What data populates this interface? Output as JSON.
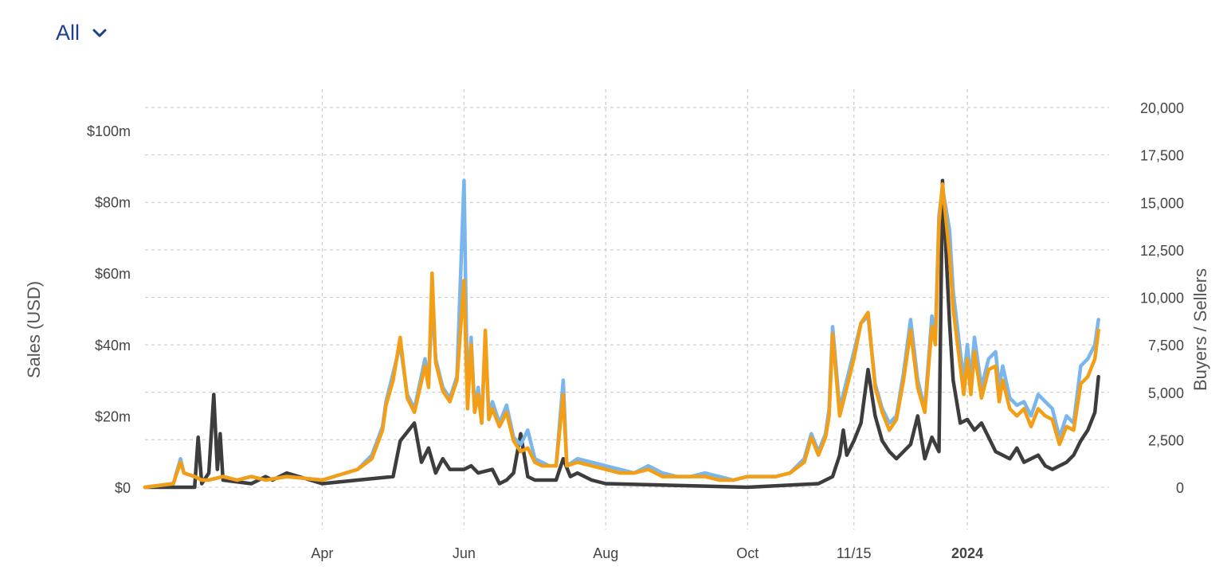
{
  "filter": {
    "label": "All",
    "icon": "chevron-down-icon"
  },
  "chart_data": {
    "type": "line",
    "title": "",
    "y_left": {
      "label": "Sales (USD)",
      "ticks": [
        "$0",
        "$20m",
        "$40m",
        "$60m",
        "$80m",
        "$100m"
      ],
      "tick_values": [
        0,
        20,
        40,
        60,
        80,
        100
      ],
      "range": [
        0,
        100
      ]
    },
    "y_right": {
      "label": "Buyers / Sellers",
      "ticks": [
        "0",
        "2,500",
        "5,000",
        "7,500",
        "10,000",
        "12,500",
        "15,000",
        "17,500",
        "20,000"
      ],
      "tick_values": [
        0,
        2500,
        5000,
        7500,
        10000,
        12500,
        15000,
        17500,
        20000
      ],
      "range": [
        0,
        20000
      ]
    },
    "x_ticks": [
      {
        "label": "Apr",
        "x": 1.0,
        "bold": false
      },
      {
        "label": "Jun",
        "x": 3.0,
        "bold": false
      },
      {
        "label": "Aug",
        "x": 5.0,
        "bold": false
      },
      {
        "label": "Oct",
        "x": 7.0,
        "bold": false
      },
      {
        "label": "11/15",
        "x": 8.5,
        "bold": false
      },
      {
        "label": "2024",
        "x": 10.1,
        "bold": true
      }
    ],
    "x_range": [
      -1.5,
      12.1
    ],
    "grid": true,
    "series": [
      {
        "axis": "left",
        "color": "#3d3d3d",
        "points": [
          [
            -1.5,
            0
          ],
          [
            -0.8,
            0
          ],
          [
            -0.75,
            14
          ],
          [
            -0.7,
            1
          ],
          [
            -0.6,
            4
          ],
          [
            -0.53,
            26
          ],
          [
            -0.48,
            5
          ],
          [
            -0.44,
            15
          ],
          [
            -0.4,
            2
          ],
          [
            0,
            1
          ],
          [
            0.2,
            3
          ],
          [
            0.3,
            2
          ],
          [
            0.5,
            4
          ],
          [
            1.0,
            1
          ],
          [
            1.5,
            2
          ],
          [
            2.0,
            3
          ],
          [
            2.1,
            13
          ],
          [
            2.3,
            18
          ],
          [
            2.4,
            7
          ],
          [
            2.5,
            11
          ],
          [
            2.6,
            4
          ],
          [
            2.7,
            8
          ],
          [
            2.8,
            5
          ],
          [
            3.0,
            5
          ],
          [
            3.1,
            6
          ],
          [
            3.2,
            4
          ],
          [
            3.4,
            5
          ],
          [
            3.5,
            1
          ],
          [
            3.6,
            2
          ],
          [
            3.7,
            4
          ],
          [
            3.8,
            15
          ],
          [
            3.9,
            3
          ],
          [
            4.0,
            2
          ],
          [
            4.3,
            2
          ],
          [
            4.4,
            8
          ],
          [
            4.5,
            3
          ],
          [
            4.6,
            4
          ],
          [
            4.8,
            2
          ],
          [
            5.0,
            1
          ],
          [
            6.0,
            0.5
          ],
          [
            7.0,
            0
          ],
          [
            7.5,
            0.5
          ],
          [
            8.0,
            1
          ],
          [
            8.2,
            3
          ],
          [
            8.3,
            9
          ],
          [
            8.35,
            16
          ],
          [
            8.4,
            9
          ],
          [
            8.5,
            13
          ],
          [
            8.6,
            18
          ],
          [
            8.7,
            33
          ],
          [
            8.8,
            20
          ],
          [
            8.9,
            13
          ],
          [
            9.0,
            10
          ],
          [
            9.1,
            8
          ],
          [
            9.3,
            12
          ],
          [
            9.4,
            20
          ],
          [
            9.5,
            8
          ],
          [
            9.6,
            14
          ],
          [
            9.7,
            10
          ],
          [
            9.75,
            86
          ],
          [
            9.85,
            46
          ],
          [
            9.9,
            30
          ],
          [
            10.0,
            18
          ],
          [
            10.1,
            19
          ],
          [
            10.2,
            16
          ],
          [
            10.3,
            18
          ],
          [
            10.4,
            14
          ],
          [
            10.5,
            10
          ],
          [
            10.6,
            9
          ],
          [
            10.7,
            8
          ],
          [
            10.8,
            11
          ],
          [
            10.9,
            7
          ],
          [
            11.0,
            8
          ],
          [
            11.1,
            9
          ],
          [
            11.2,
            6
          ],
          [
            11.3,
            5
          ],
          [
            11.4,
            6
          ],
          [
            11.5,
            7
          ],
          [
            11.6,
            9
          ],
          [
            11.7,
            13
          ],
          [
            11.8,
            16
          ],
          [
            11.9,
            21
          ],
          [
            11.95,
            31
          ]
        ]
      },
      {
        "axis": "left",
        "color": "#7ab6ec",
        "points": [
          [
            -1.5,
            0
          ],
          [
            -1.1,
            1
          ],
          [
            -1.0,
            8
          ],
          [
            -0.95,
            4
          ],
          [
            -0.8,
            3
          ],
          [
            -0.7,
            2
          ],
          [
            -0.6,
            2
          ],
          [
            -0.4,
            3
          ],
          [
            -0.2,
            2
          ],
          [
            0,
            3
          ],
          [
            0.2,
            2
          ],
          [
            0.5,
            3
          ],
          [
            1.0,
            2
          ],
          [
            1.5,
            5
          ],
          [
            1.7,
            9
          ],
          [
            1.85,
            17
          ],
          [
            1.9,
            24
          ],
          [
            2.0,
            32
          ],
          [
            2.1,
            40
          ],
          [
            2.2,
            26
          ],
          [
            2.3,
            22
          ],
          [
            2.45,
            36
          ],
          [
            2.5,
            29
          ],
          [
            2.55,
            52
          ],
          [
            2.6,
            36
          ],
          [
            2.7,
            28
          ],
          [
            2.8,
            25
          ],
          [
            2.9,
            31
          ],
          [
            3.0,
            86
          ],
          [
            3.05,
            24
          ],
          [
            3.1,
            42
          ],
          [
            3.15,
            22
          ],
          [
            3.2,
            28
          ],
          [
            3.25,
            18
          ],
          [
            3.3,
            42
          ],
          [
            3.35,
            20
          ],
          [
            3.4,
            24
          ],
          [
            3.5,
            18
          ],
          [
            3.6,
            23
          ],
          [
            3.7,
            14
          ],
          [
            3.8,
            12
          ],
          [
            3.9,
            16
          ],
          [
            4.0,
            8
          ],
          [
            4.1,
            7
          ],
          [
            4.2,
            6
          ],
          [
            4.3,
            6
          ],
          [
            4.4,
            30
          ],
          [
            4.45,
            6
          ],
          [
            4.6,
            8
          ],
          [
            4.8,
            7
          ],
          [
            5.0,
            6
          ],
          [
            5.2,
            5
          ],
          [
            5.4,
            4
          ],
          [
            5.6,
            6
          ],
          [
            5.8,
            4
          ],
          [
            6.0,
            3
          ],
          [
            6.2,
            3
          ],
          [
            6.4,
            4
          ],
          [
            6.6,
            3
          ],
          [
            6.8,
            2
          ],
          [
            7.0,
            3
          ],
          [
            7.2,
            3
          ],
          [
            7.4,
            3
          ],
          [
            7.6,
            4
          ],
          [
            7.8,
            8
          ],
          [
            7.9,
            15
          ],
          [
            8.0,
            10
          ],
          [
            8.1,
            15
          ],
          [
            8.15,
            22
          ],
          [
            8.2,
            45
          ],
          [
            8.3,
            22
          ],
          [
            8.4,
            30
          ],
          [
            8.5,
            38
          ],
          [
            8.6,
            46
          ],
          [
            8.7,
            48
          ],
          [
            8.8,
            29
          ],
          [
            8.9,
            22
          ],
          [
            9.0,
            18
          ],
          [
            9.1,
            20
          ],
          [
            9.2,
            32
          ],
          [
            9.3,
            47
          ],
          [
            9.4,
            30
          ],
          [
            9.5,
            22
          ],
          [
            9.6,
            48
          ],
          [
            9.65,
            42
          ],
          [
            9.7,
            76
          ],
          [
            9.75,
            84
          ],
          [
            9.85,
            72
          ],
          [
            9.9,
            55
          ],
          [
            10.0,
            38
          ],
          [
            10.05,
            30
          ],
          [
            10.1,
            40
          ],
          [
            10.15,
            30
          ],
          [
            10.2,
            42
          ],
          [
            10.3,
            28
          ],
          [
            10.4,
            36
          ],
          [
            10.5,
            38
          ],
          [
            10.55,
            28
          ],
          [
            10.6,
            34
          ],
          [
            10.7,
            25
          ],
          [
            10.8,
            23
          ],
          [
            10.9,
            24
          ],
          [
            11.0,
            20
          ],
          [
            11.1,
            26
          ],
          [
            11.2,
            24
          ],
          [
            11.3,
            22
          ],
          [
            11.4,
            14
          ],
          [
            11.5,
            20
          ],
          [
            11.6,
            18
          ],
          [
            11.7,
            34
          ],
          [
            11.8,
            36
          ],
          [
            11.9,
            40
          ],
          [
            11.95,
            47
          ]
        ]
      },
      {
        "axis": "left",
        "color": "#f29e17",
        "points": [
          [
            -1.5,
            0
          ],
          [
            -1.1,
            1
          ],
          [
            -1.0,
            7
          ],
          [
            -0.95,
            4
          ],
          [
            -0.8,
            3
          ],
          [
            -0.7,
            2
          ],
          [
            -0.6,
            2
          ],
          [
            -0.4,
            3
          ],
          [
            -0.2,
            2
          ],
          [
            0,
            3
          ],
          [
            0.2,
            2
          ],
          [
            0.5,
            3
          ],
          [
            1.0,
            2
          ],
          [
            1.5,
            5
          ],
          [
            1.7,
            8
          ],
          [
            1.85,
            16
          ],
          [
            1.9,
            23
          ],
          [
            2.0,
            30
          ],
          [
            2.1,
            42
          ],
          [
            2.2,
            25
          ],
          [
            2.3,
            21
          ],
          [
            2.45,
            34
          ],
          [
            2.5,
            28
          ],
          [
            2.55,
            60
          ],
          [
            2.6,
            35
          ],
          [
            2.7,
            27
          ],
          [
            2.8,
            24
          ],
          [
            2.9,
            30
          ],
          [
            3.0,
            58
          ],
          [
            3.05,
            22
          ],
          [
            3.1,
            40
          ],
          [
            3.15,
            21
          ],
          [
            3.2,
            26
          ],
          [
            3.25,
            18
          ],
          [
            3.3,
            44
          ],
          [
            3.35,
            19
          ],
          [
            3.4,
            22
          ],
          [
            3.5,
            17
          ],
          [
            3.6,
            21
          ],
          [
            3.7,
            13
          ],
          [
            3.8,
            10
          ],
          [
            3.9,
            11
          ],
          [
            4.0,
            7
          ],
          [
            4.1,
            6
          ],
          [
            4.2,
            6
          ],
          [
            4.3,
            6
          ],
          [
            4.4,
            26
          ],
          [
            4.45,
            6
          ],
          [
            4.6,
            7
          ],
          [
            4.8,
            6
          ],
          [
            5.0,
            5
          ],
          [
            5.2,
            4
          ],
          [
            5.4,
            4
          ],
          [
            5.6,
            5
          ],
          [
            5.8,
            3
          ],
          [
            6.0,
            3
          ],
          [
            6.2,
            3
          ],
          [
            6.4,
            3
          ],
          [
            6.6,
            2
          ],
          [
            6.8,
            2
          ],
          [
            7.0,
            3
          ],
          [
            7.2,
            3
          ],
          [
            7.4,
            3
          ],
          [
            7.6,
            4
          ],
          [
            7.8,
            7
          ],
          [
            7.9,
            14
          ],
          [
            8.0,
            9
          ],
          [
            8.1,
            14
          ],
          [
            8.15,
            20
          ],
          [
            8.2,
            43
          ],
          [
            8.3,
            20
          ],
          [
            8.4,
            28
          ],
          [
            8.5,
            36
          ],
          [
            8.6,
            46
          ],
          [
            8.7,
            49
          ],
          [
            8.8,
            28
          ],
          [
            8.9,
            21
          ],
          [
            9.0,
            16
          ],
          [
            9.1,
            19
          ],
          [
            9.2,
            30
          ],
          [
            9.3,
            44
          ],
          [
            9.4,
            28
          ],
          [
            9.5,
            21
          ],
          [
            9.6,
            45
          ],
          [
            9.65,
            40
          ],
          [
            9.7,
            74
          ],
          [
            9.75,
            85
          ],
          [
            9.85,
            65
          ],
          [
            9.9,
            50
          ],
          [
            10.0,
            34
          ],
          [
            10.05,
            26
          ],
          [
            10.1,
            36
          ],
          [
            10.15,
            26
          ],
          [
            10.2,
            38
          ],
          [
            10.3,
            25
          ],
          [
            10.4,
            33
          ],
          [
            10.5,
            34
          ],
          [
            10.55,
            24
          ],
          [
            10.6,
            30
          ],
          [
            10.7,
            22
          ],
          [
            10.8,
            20
          ],
          [
            10.9,
            22
          ],
          [
            11.0,
            17
          ],
          [
            11.1,
            22
          ],
          [
            11.2,
            20
          ],
          [
            11.3,
            19
          ],
          [
            11.4,
            12
          ],
          [
            11.5,
            17
          ],
          [
            11.6,
            16
          ],
          [
            11.7,
            29
          ],
          [
            11.8,
            31
          ],
          [
            11.9,
            36
          ],
          [
            11.95,
            44
          ]
        ]
      }
    ]
  }
}
